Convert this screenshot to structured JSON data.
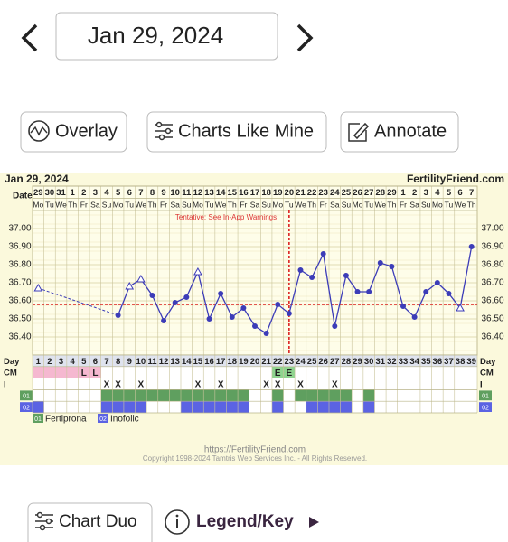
{
  "header": {
    "date": "Jan 29, 2024"
  },
  "buttons": [
    "Overlay",
    "Charts Like Mine",
    "Annotate"
  ],
  "chart_data": {
    "type": "line",
    "title": "Jan 29, 2024",
    "brand": "FertilityFriend.com",
    "warning": "Tentative: See In-App Warnings",
    "date_label": "Date",
    "dates": [
      29,
      30,
      31,
      1,
      2,
      3,
      4,
      5,
      6,
      7,
      8,
      9,
      10,
      11,
      12,
      13,
      14,
      15,
      16,
      17,
      18,
      19,
      20,
      21,
      22,
      23,
      24,
      25,
      26,
      27,
      28,
      29,
      1,
      2,
      3,
      4,
      5,
      6,
      7
    ],
    "weekdays": [
      "Mo",
      "Tu",
      "We",
      "Th",
      "Fr",
      "Sa",
      "Su",
      "Mo",
      "Tu",
      "We",
      "Th",
      "Fr",
      "Sa",
      "Su",
      "Mo",
      "Tu",
      "We",
      "Th",
      "Fr",
      "Sa",
      "Su",
      "Mo",
      "Tu",
      "We",
      "Th",
      "Fr",
      "Sa",
      "Su",
      "Mo",
      "Tu",
      "We",
      "Th",
      "Fr",
      "Sa",
      "Su",
      "Mo",
      "Tu",
      "We",
      "Th"
    ],
    "values": [
      36.67,
      null,
      null,
      null,
      null,
      null,
      null,
      36.52,
      36.68,
      36.72,
      36.63,
      36.49,
      36.59,
      36.62,
      36.76,
      36.5,
      36.64,
      36.51,
      36.56,
      36.46,
      36.42,
      36.58,
      36.53,
      36.77,
      36.73,
      36.86,
      36.46,
      36.74,
      36.65,
      36.65,
      36.81,
      36.79,
      36.57,
      36.51,
      36.65,
      36.7,
      36.64,
      36.56,
      36.9
    ],
    "markers": [
      "triangle",
      null,
      null,
      null,
      null,
      null,
      null,
      "dot",
      "triangle",
      "triangle",
      "dot",
      "dot",
      "dot",
      "dot",
      "triangle",
      "dot",
      "dot",
      "dot",
      "dot",
      "dot",
      "dot",
      "dot",
      "dot",
      "dot",
      "dot",
      "dot",
      "dot",
      "dot",
      "dot",
      "dot",
      "dot",
      "dot",
      "dot",
      "dot",
      "dot",
      "dot",
      "dot",
      "triangle",
      "dot"
    ],
    "color": "#3c3cb8",
    "ylim": [
      36.3,
      37.1
    ],
    "yticks": [
      {
        "value": 36.4,
        "label": "36.40"
      },
      {
        "value": 36.5,
        "label": "36.50"
      },
      {
        "value": 36.6,
        "label": "36.60"
      },
      {
        "value": 36.7,
        "label": "36.70"
      },
      {
        "value": 36.8,
        "label": "36.80"
      },
      {
        "value": 36.9,
        "label": "36.90"
      },
      {
        "value": 37,
        "label": "37.00"
      }
    ],
    "coverline": 36.58,
    "ovulation_day": 23,
    "marker_color": "#d22"
  },
  "chart_rows": {
    "day_label": "Day",
    "days": [
      1,
      2,
      3,
      4,
      5,
      6,
      7,
      8,
      9,
      10,
      11,
      12,
      13,
      14,
      15,
      16,
      17,
      18,
      19,
      20,
      21,
      22,
      23,
      24,
      25,
      26,
      27,
      28,
      29,
      30,
      31,
      32,
      33,
      34,
      35,
      36,
      37,
      38,
      39
    ],
    "cm": {
      "label": "CM",
      "groups": [
        {
          "color": "#f5b8d0",
          "days": [
            1,
            2,
            3,
            4,
            5,
            6
          ],
          "text": [
            null,
            null,
            null,
            null,
            "L",
            "L"
          ]
        },
        {
          "color": "#8fd48f",
          "days": [
            22,
            23
          ],
          "text": [
            "E",
            "E"
          ]
        }
      ]
    },
    "intercourse": {
      "label": "I",
      "symbol": "X",
      "days": [
        7,
        8,
        10,
        15,
        17,
        21,
        22,
        24,
        27
      ]
    },
    "meds": [
      {
        "label": "01",
        "name": "Fertiprona",
        "color": "#5f9f5f",
        "days": [
          7,
          8,
          9,
          10,
          11,
          12,
          13,
          14,
          15,
          16,
          17,
          18,
          19,
          22,
          24,
          25,
          26,
          27,
          28,
          30
        ]
      },
      {
        "label": "02",
        "name": "Inofolic",
        "color": "#5b63e3",
        "days": [
          1,
          7,
          8,
          9,
          10,
          14,
          15,
          16,
          17,
          18,
          19,
          22,
          25,
          26,
          27,
          28,
          30
        ]
      }
    ]
  },
  "chart_footer": {
    "url": "https://FertilityFriend.com",
    "copyright": "Copyright 1998-2024 Tamtris Web Services Inc. - All Rights Reserved."
  },
  "bottom": {
    "chart_duo": "Chart Duo",
    "legend": "Legend/Key"
  }
}
